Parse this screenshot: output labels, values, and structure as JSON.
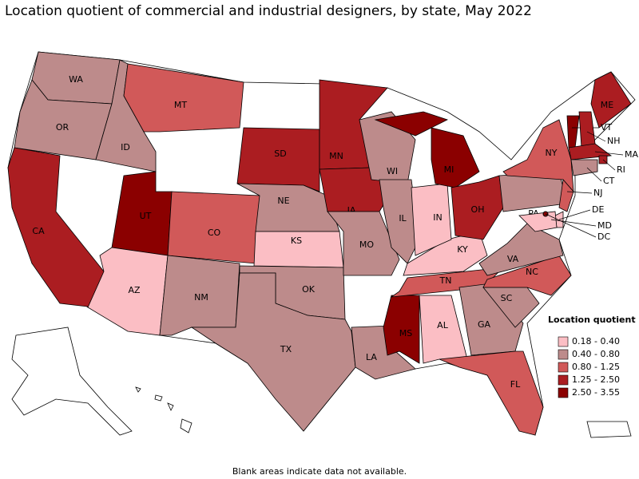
{
  "title": "Location quotient of commercial and industrial designers, by state, May 2022",
  "footnote": "Blank areas indicate data not available.",
  "legend": {
    "title": "Location quotient",
    "entries": [
      {
        "label": "0.18 - 0.40",
        "color": "#fbbec4"
      },
      {
        "label": "0.40 - 0.80",
        "color": "#bd8b8b"
      },
      {
        "label": "0.80 - 1.25",
        "color": "#d15959"
      },
      {
        "label": "1.25 - 2.50",
        "color": "#ab1d21"
      },
      {
        "label": "2.50 - 3.55",
        "color": "#8b0000"
      }
    ]
  },
  "states": [
    {
      "label": "WA",
      "color": "#bd8b8b"
    },
    {
      "label": "OR",
      "color": "#bd8b8b"
    },
    {
      "label": "CA",
      "color": "#ab1d21"
    },
    {
      "label": "ID",
      "color": "#bd8b8b"
    },
    {
      "label": "MT",
      "color": "#d15959"
    },
    {
      "label": "UT",
      "color": "#8b0000"
    },
    {
      "label": "AZ",
      "color": "#fbbec4"
    },
    {
      "label": "CO",
      "color": "#d15959"
    },
    {
      "label": "NM",
      "color": "#bd8b8b"
    },
    {
      "label": "SD",
      "color": "#ab1d21"
    },
    {
      "label": "NE",
      "color": "#bd8b8b"
    },
    {
      "label": "KS",
      "color": "#fbbec4"
    },
    {
      "label": "OK",
      "color": "#bd8b8b"
    },
    {
      "label": "TX",
      "color": "#bd8b8b"
    },
    {
      "label": "MN",
      "color": "#ab1d21"
    },
    {
      "label": "IA",
      "color": "#ab1d21"
    },
    {
      "label": "MO",
      "color": "#bd8b8b"
    },
    {
      "label": "LA",
      "color": "#bd8b8b"
    },
    {
      "label": "WI",
      "color": "#bd8b8b"
    },
    {
      "label": "IL",
      "color": "#bd8b8b"
    },
    {
      "label": "MS",
      "color": "#8b0000"
    },
    {
      "label": "AL",
      "color": "#fbbec4"
    },
    {
      "label": "TN",
      "color": "#d15959"
    },
    {
      "label": "KY",
      "color": "#fbbec4"
    },
    {
      "label": "IN",
      "color": "#fbbec4"
    },
    {
      "label": "MI",
      "color": "#8b0000"
    },
    {
      "label": "OH",
      "color": "#ab1d21"
    },
    {
      "label": "GA",
      "color": "#bd8b8b"
    },
    {
      "label": "FL",
      "color": "#d15959"
    },
    {
      "label": "SC",
      "color": "#bd8b8b"
    },
    {
      "label": "NC",
      "color": "#d15959"
    },
    {
      "label": "VA",
      "color": "#bd8b8b"
    },
    {
      "label": "PA",
      "color": "#bd8b8b"
    },
    {
      "label": "NY",
      "color": "#d15959"
    },
    {
      "label": "ME",
      "color": "#ab1d21"
    },
    {
      "label": "VT",
      "color": "#8b0000"
    },
    {
      "label": "NH",
      "color": "#ab1d21"
    },
    {
      "label": "MA",
      "color": "#ab1d21"
    },
    {
      "label": "RI",
      "color": "#ab1d21"
    },
    {
      "label": "CT",
      "color": "#bd8b8b"
    },
    {
      "label": "NJ",
      "color": "#d15959"
    },
    {
      "label": "DE",
      "color": "#fbbec4"
    },
    {
      "label": "MD",
      "color": "#fbbec4"
    },
    {
      "label": "DC",
      "color": "#8b0000"
    }
  ]
}
